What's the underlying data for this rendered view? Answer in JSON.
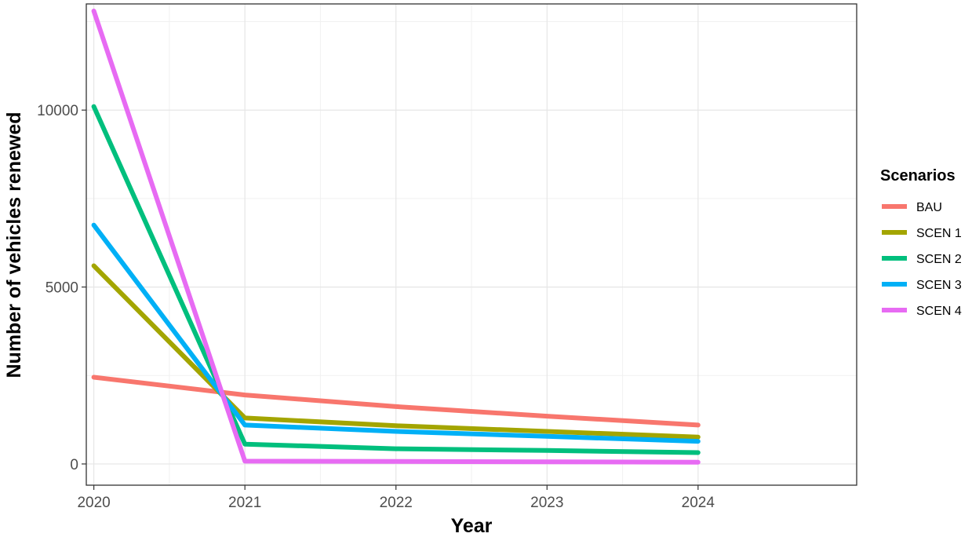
{
  "chart_data": {
    "type": "line",
    "xlabel": "Year",
    "ylabel": "Number of vehicles renewed",
    "x": [
      2020,
      2021,
      2022,
      2023,
      2024
    ],
    "xlim": [
      2019.95,
      2025.05
    ],
    "ylim": [
      -600,
      13000
    ],
    "y_ticks": [
      0,
      5000,
      10000
    ],
    "y_tick_labels": [
      "0",
      "5000",
      "10000"
    ],
    "x_tick_labels": [
      "2020",
      "2021",
      "2022",
      "2023",
      "2024"
    ],
    "grid": true,
    "legend": {
      "title": "Scenarios",
      "position": "right"
    },
    "series": [
      {
        "name": "BAU",
        "color": "#F8766D",
        "values": [
          2450,
          1950,
          1620,
          1350,
          1100
        ]
      },
      {
        "name": "SCEN 1",
        "color": "#A3A500",
        "values": [
          5600,
          1300,
          1080,
          920,
          760
        ]
      },
      {
        "name": "SCEN 2",
        "color": "#00BF7D",
        "values": [
          10100,
          560,
          430,
          380,
          320
        ]
      },
      {
        "name": "SCEN 3",
        "color": "#00B0F6",
        "values": [
          6750,
          1100,
          920,
          780,
          640
        ]
      },
      {
        "name": "SCEN 4",
        "color": "#E76BF3",
        "values": [
          12800,
          80,
          70,
          60,
          50
        ]
      }
    ]
  }
}
